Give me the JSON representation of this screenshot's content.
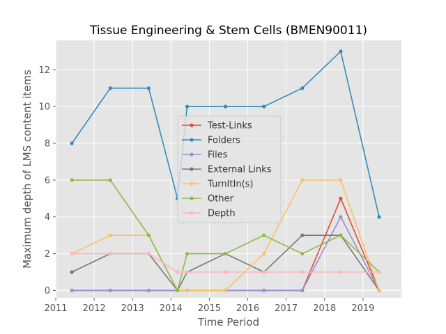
{
  "chart_data": {
    "type": "line",
    "title": "Tissue Engineering & Stem Cells (BMEN90011)",
    "xlabel": "Time Period",
    "ylabel": "Maximum depth of LMS content items",
    "xlim": [
      2011,
      2020
    ],
    "ylim": [
      -0.4,
      13.6
    ],
    "xticks": [
      2011,
      2012,
      2013,
      2014,
      2015,
      2016,
      2017,
      2018,
      2019
    ],
    "yticks": [
      0,
      2,
      4,
      6,
      8,
      10,
      12
    ],
    "grid": true,
    "legend_position": "center",
    "x": [
      2011.42,
      2012.42,
      2013.42,
      2014.17,
      2014.42,
      2015.42,
      2016.42,
      2017.42,
      2018.42,
      2019.42
    ],
    "series": [
      {
        "name": "Test-Links",
        "color": "#E24A33",
        "values": [
          0,
          0,
          0,
          0,
          0,
          0,
          0,
          0,
          5,
          0
        ]
      },
      {
        "name": "Folders",
        "color": "#348ABD",
        "values": [
          8,
          11,
          11,
          5,
          10,
          10,
          10,
          11,
          13,
          4
        ]
      },
      {
        "name": "Files",
        "color": "#988ED5",
        "values": [
          0,
          0,
          0,
          0,
          0,
          0,
          0,
          0,
          4,
          0
        ]
      },
      {
        "name": "External Links",
        "color": "#777777",
        "values": [
          1,
          2,
          2,
          0,
          1,
          2,
          1,
          3,
          3,
          0
        ]
      },
      {
        "name": "TurnItIn(s)",
        "color": "#FBC15E",
        "values": [
          2,
          3,
          3,
          0,
          0,
          0,
          2,
          6,
          6,
          0
        ]
      },
      {
        "name": "Other",
        "color": "#8EBA42",
        "values": [
          6,
          6,
          3,
          0,
          2,
          2,
          3,
          2,
          3,
          1
        ]
      },
      {
        "name": "Depth",
        "color": "#FFB5B8",
        "values": [
          2,
          2,
          2,
          1,
          1,
          1,
          1,
          1,
          1,
          1
        ]
      }
    ]
  }
}
